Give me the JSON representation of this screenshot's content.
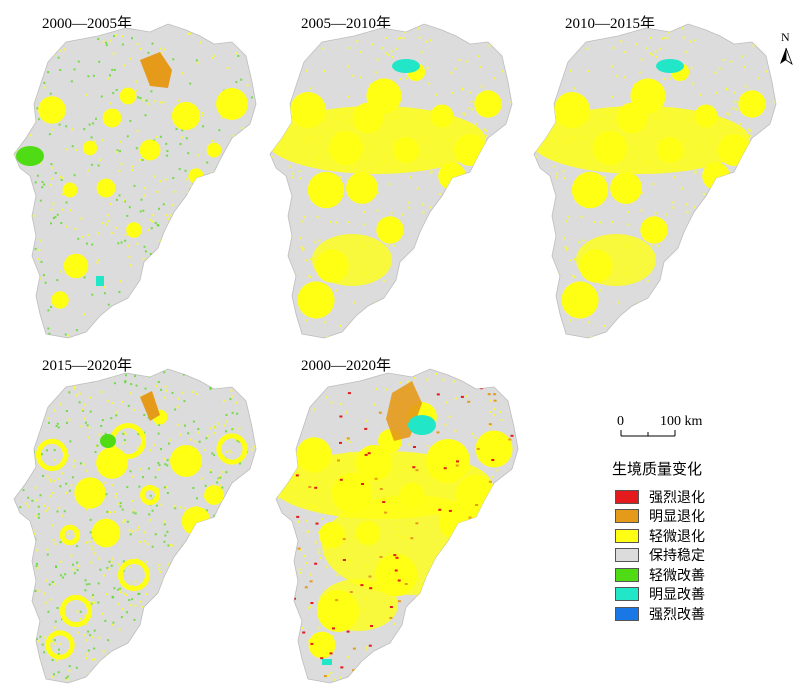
{
  "panels": [
    {
      "title": "2000—2005年",
      "variant": "a"
    },
    {
      "title": "2005—2010年",
      "variant": "b"
    },
    {
      "title": "2010—2015年",
      "variant": "b"
    },
    {
      "title": "2015—2020年",
      "variant": "c"
    },
    {
      "title": "2000—2020年",
      "variant": "d"
    }
  ],
  "legend": {
    "title": "生境质量变化",
    "items": [
      {
        "label": "强烈退化",
        "color": "#e41a1c"
      },
      {
        "label": "明显退化",
        "color": "#e69a1a"
      },
      {
        "label": "轻微退化",
        "color": "#ffff14"
      },
      {
        "label": "保持稳定",
        "color": "#dcdcdc"
      },
      {
        "label": "轻微改善",
        "color": "#4fdc14"
      },
      {
        "label": "明显改善",
        "color": "#22e6c8"
      },
      {
        "label": "强烈改善",
        "color": "#1a78e6"
      }
    ]
  },
  "scale_bar": {
    "start_label": "0",
    "end_label": "100 km"
  },
  "north_arrow": {
    "label": "N"
  }
}
